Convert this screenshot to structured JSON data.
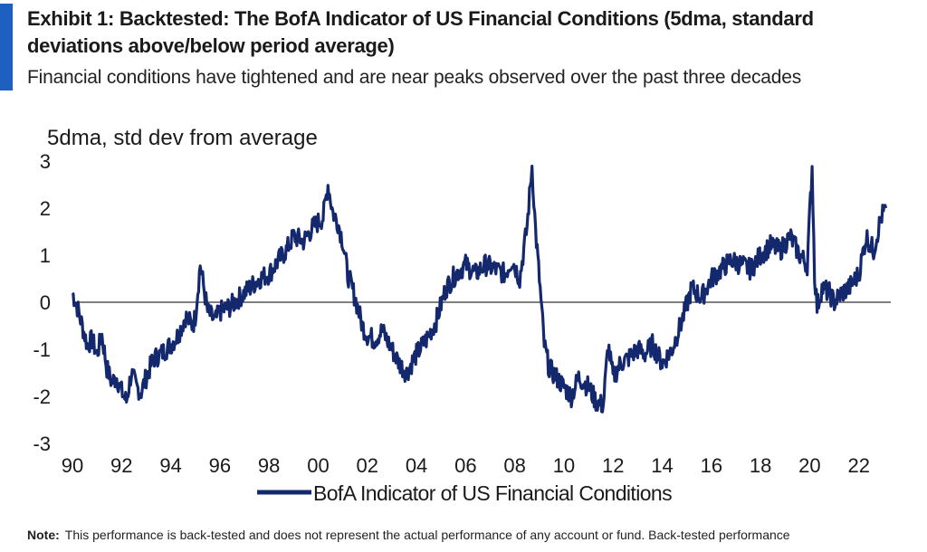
{
  "header": {
    "title": "Exhibit 1: Backtested: The BofA Indicator of US Financial Conditions (5dma, standard deviations above/below period average)",
    "subtitle": "Financial conditions have tightened and are near peaks observed over the past three decades"
  },
  "footer": {
    "note_label": "Note:",
    "note_text": "This performance is back-tested and does not represent the actual performance of any account  or fund. Back-tested performance"
  },
  "colors": {
    "accent": "#1f5fbf",
    "series": "#14286e",
    "zero_line": "#808080"
  },
  "chart_data": {
    "type": "line",
    "title": "",
    "ylabel": "5dma, std dev from average",
    "xlabel": "",
    "ylim": [
      -3,
      3
    ],
    "xlim": [
      1990,
      2023.3
    ],
    "yticks": [
      3,
      2,
      1,
      0,
      -1,
      -2,
      -3
    ],
    "xticks": [
      "90",
      "92",
      "94",
      "96",
      "98",
      "00",
      "02",
      "04",
      "06",
      "08",
      "10",
      "12",
      "14",
      "16",
      "18",
      "20",
      "22"
    ],
    "grid": false,
    "legend_position": "bottom-center",
    "series": [
      {
        "name": "BofA Indicator of US Financial Conditions",
        "color": "#14286e",
        "x": [
          1990.0,
          1990.2,
          1990.4,
          1990.6,
          1990.8,
          1991.0,
          1991.2,
          1991.4,
          1991.6,
          1991.8,
          1992.0,
          1992.2,
          1992.4,
          1992.6,
          1992.8,
          1993.0,
          1993.3,
          1993.6,
          1994.0,
          1994.3,
          1994.6,
          1994.9,
          1995.0,
          1995.2,
          1995.5,
          1995.8,
          1996.0,
          1996.4,
          1996.8,
          1997.2,
          1997.6,
          1998.0,
          1998.4,
          1998.7,
          1999.0,
          1999.4,
          1999.8,
          2000.2,
          2000.4,
          2000.6,
          2000.8,
          2001.0,
          2001.2,
          2001.5,
          2001.8,
          2002.0,
          2002.3,
          2002.6,
          2003.0,
          2003.3,
          2003.6,
          2004.0,
          2004.4,
          2004.8,
          2005.2,
          2005.6,
          2006.0,
          2006.4,
          2006.8,
          2007.2,
          2007.6,
          2007.9,
          2008.2,
          2008.5,
          2008.7,
          2008.85,
          2009.0,
          2009.2,
          2009.4,
          2009.7,
          2010.0,
          2010.3,
          2010.6,
          2011.0,
          2011.3,
          2011.6,
          2011.8,
          2012.0,
          2012.3,
          2012.6,
          2013.0,
          2013.3,
          2013.6,
          2014.0,
          2014.4,
          2014.8,
          2015.2,
          2015.6,
          2016.0,
          2016.4,
          2016.8,
          2017.2,
          2017.6,
          2018.0,
          2018.4,
          2018.8,
          2019.2,
          2019.6,
          2019.9,
          2020.1,
          2020.2,
          2020.3,
          2020.5,
          2020.8,
          2021.0,
          2021.3,
          2021.6,
          2022.0,
          2022.3,
          2022.6,
          2022.9,
          2023.1
        ],
        "values": [
          0.2,
          -0.1,
          -0.5,
          -0.9,
          -0.8,
          -1.1,
          -0.7,
          -1.4,
          -1.7,
          -1.6,
          -1.9,
          -2.1,
          -1.5,
          -1.8,
          -1.9,
          -1.6,
          -1.2,
          -1.1,
          -0.9,
          -0.7,
          -0.3,
          -0.5,
          -0.3,
          0.8,
          -0.2,
          -0.4,
          -0.2,
          -0.1,
          0.1,
          0.3,
          0.5,
          0.6,
          0.9,
          1.1,
          1.4,
          1.3,
          1.6,
          1.8,
          2.5,
          1.9,
          1.7,
          1.3,
          0.6,
          0.1,
          -0.5,
          -0.7,
          -0.8,
          -0.6,
          -1.0,
          -1.3,
          -1.5,
          -1.1,
          -0.8,
          -0.4,
          0.3,
          0.6,
          0.8,
          0.6,
          0.8,
          0.7,
          0.6,
          0.9,
          0.5,
          1.6,
          2.9,
          1.5,
          0.5,
          -0.9,
          -1.4,
          -1.6,
          -1.8,
          -2.0,
          -1.6,
          -1.8,
          -2.1,
          -2.2,
          -0.9,
          -1.6,
          -1.3,
          -1.2,
          -1.0,
          -1.1,
          -0.9,
          -1.3,
          -1.0,
          -0.4,
          0.3,
          0.1,
          0.5,
          0.7,
          0.9,
          0.8,
          0.7,
          1.0,
          1.2,
          1.1,
          1.4,
          1.0,
          0.8,
          2.9,
          0.6,
          -0.1,
          0.3,
          0.2,
          0.0,
          0.2,
          0.3,
          0.6,
          1.4,
          1.1,
          1.8,
          2.0
        ]
      }
    ]
  }
}
